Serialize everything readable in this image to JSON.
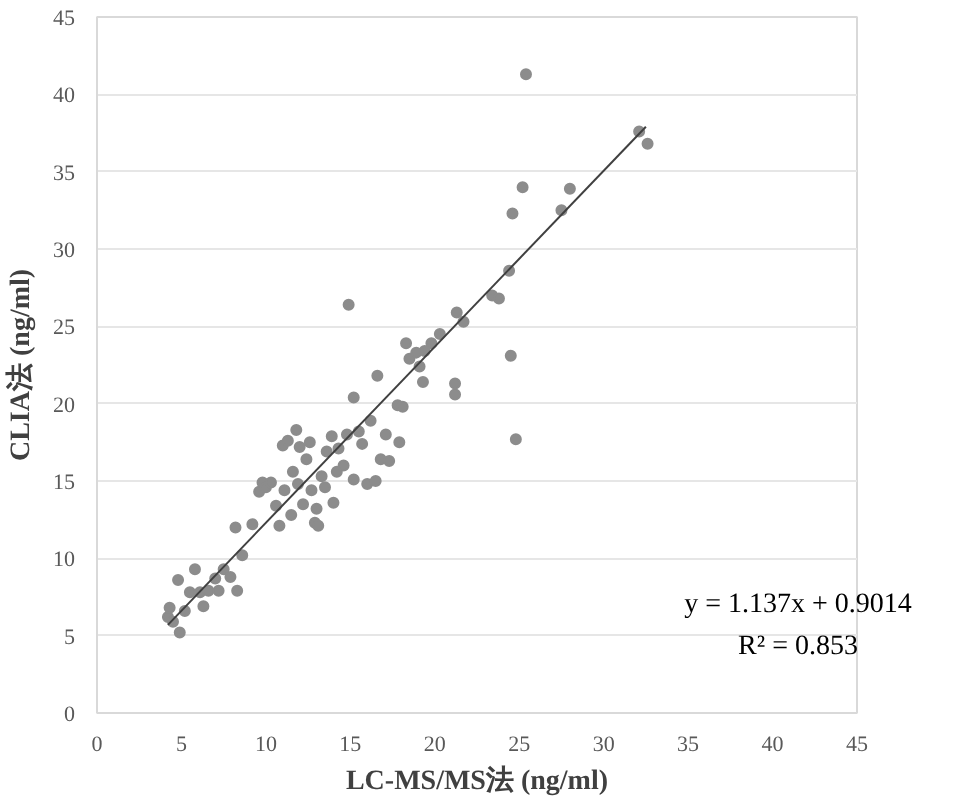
{
  "chart_data": {
    "type": "scatter",
    "xlabel": "LC-MS/MS法 (ng/ml)",
    "ylabel": "CLIA法 (ng/ml)",
    "xlim": [
      0,
      45
    ],
    "ylim": [
      0,
      45
    ],
    "xticks": [
      0,
      5,
      10,
      15,
      20,
      25,
      30,
      35,
      40,
      45
    ],
    "yticks": [
      0,
      5,
      10,
      15,
      20,
      25,
      30,
      35,
      40,
      45
    ],
    "grid": "y",
    "annotations": [
      "y = 1.137x + 0.9014",
      "R² = 0.853"
    ],
    "series": [
      {
        "marker": "circle",
        "color": "#8c8c8c",
        "x": [
          4.2,
          4.3,
          4.5,
          4.8,
          4.9,
          5.2,
          5.5,
          5.8,
          6.1,
          6.3,
          6.6,
          7.0,
          7.2,
          7.5,
          7.9,
          8.2,
          8.3,
          8.6,
          9.2,
          9.6,
          9.8,
          10.0,
          10.3,
          10.6,
          10.8,
          11.0,
          11.1,
          11.3,
          11.5,
          11.6,
          11.8,
          11.9,
          12.0,
          12.2,
          12.4,
          12.6,
          12.7,
          12.9,
          13.0,
          13.1,
          13.3,
          13.5,
          13.6,
          13.9,
          14.0,
          14.2,
          14.3,
          14.6,
          14.8,
          14.9,
          15.2,
          15.2,
          15.5,
          15.7,
          16.0,
          16.2,
          16.5,
          16.6,
          16.8,
          17.1,
          17.3,
          17.8,
          17.9,
          18.1,
          18.3,
          18.5,
          18.9,
          19.1,
          19.3,
          19.4,
          19.8,
          20.3,
          21.2,
          21.2,
          21.3,
          21.7,
          23.4,
          23.8,
          24.4,
          24.5,
          24.6,
          24.8,
          25.2,
          25.4,
          27.5,
          28.0,
          32.1,
          32.6
        ],
        "values": [
          6.2,
          6.8,
          5.9,
          8.6,
          5.2,
          6.6,
          7.8,
          9.3,
          7.8,
          6.9,
          7.9,
          8.7,
          7.9,
          9.3,
          8.8,
          12.0,
          7.9,
          10.2,
          12.2,
          14.3,
          14.9,
          14.6,
          14.9,
          13.4,
          12.1,
          17.3,
          14.4,
          17.6,
          12.8,
          15.6,
          18.3,
          14.8,
          17.2,
          13.5,
          16.4,
          17.5,
          14.4,
          12.3,
          13.2,
          12.1,
          15.3,
          14.6,
          16.9,
          17.9,
          13.6,
          15.6,
          17.1,
          16.0,
          18.0,
          26.4,
          20.4,
          15.1,
          18.2,
          17.4,
          14.8,
          18.9,
          15.0,
          21.8,
          16.4,
          18.0,
          16.3,
          19.9,
          17.5,
          19.8,
          23.9,
          22.9,
          23.3,
          22.4,
          21.4,
          23.4,
          23.9,
          24.5,
          20.6,
          21.3,
          25.9,
          25.3,
          27.0,
          26.8,
          28.6,
          23.1,
          32.3,
          17.7,
          34.0,
          41.3,
          32.5,
          33.9,
          37.6,
          36.8
        ]
      },
      {
        "type": "line",
        "color": "#404040",
        "x": [
          4.2,
          32.5
        ],
        "values": [
          5.7,
          37.9
        ],
        "marker": "none"
      }
    ]
  }
}
